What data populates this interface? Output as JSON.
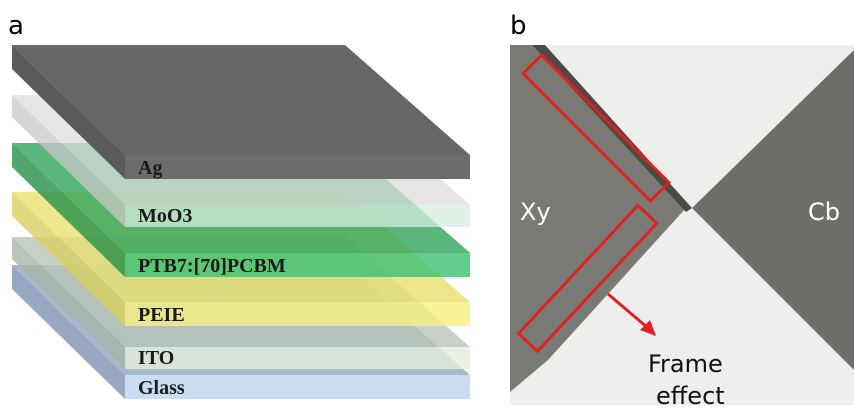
{
  "panel_a": {
    "label": "a",
    "layers": [
      "Ag",
      "MoO3",
      "PTB7:[70]PCBM",
      "PEIE",
      "ITO",
      "Glass"
    ]
  },
  "panel_b": {
    "label": "b",
    "left_label": "Xy",
    "right_label": "Cb",
    "annotation": [
      "Frame",
      "effect"
    ]
  }
}
